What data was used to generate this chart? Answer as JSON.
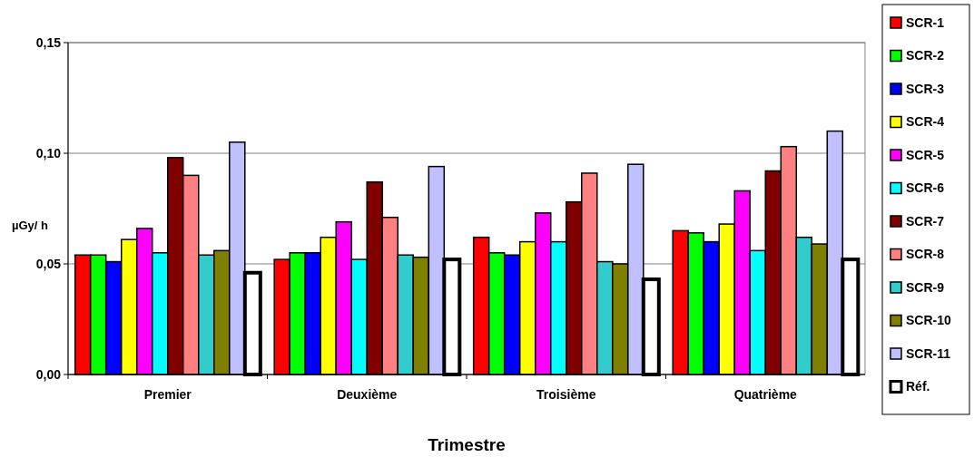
{
  "chart_data": {
    "type": "bar",
    "xlabel": "Trimestre",
    "ylabel": "µGy/ h",
    "categories": [
      "Premier",
      "Deuxième",
      "Troisième",
      "Quatrième"
    ],
    "series": [
      {
        "name": "SCR-1",
        "color": "#ff0000",
        "values": [
          0.054,
          0.052,
          0.062,
          0.065
        ]
      },
      {
        "name": "SCR-2",
        "color": "#00ff00",
        "values": [
          0.054,
          0.055,
          0.055,
          0.064
        ]
      },
      {
        "name": "SCR-3",
        "color": "#0000ff",
        "values": [
          0.051,
          0.055,
          0.054,
          0.06
        ]
      },
      {
        "name": "SCR-4",
        "color": "#ffff00",
        "values": [
          0.061,
          0.062,
          0.06,
          0.068
        ]
      },
      {
        "name": "SCR-5",
        "color": "#ff00ff",
        "values": [
          0.066,
          0.069,
          0.073,
          0.083
        ]
      },
      {
        "name": "SCR-6",
        "color": "#00ffff",
        "values": [
          0.055,
          0.052,
          0.06,
          0.056
        ]
      },
      {
        "name": "SCR-7",
        "color": "#800000",
        "values": [
          0.098,
          0.087,
          0.078,
          0.092
        ]
      },
      {
        "name": "SCR-8",
        "color": "#ff8080",
        "values": [
          0.09,
          0.071,
          0.091,
          0.103
        ]
      },
      {
        "name": "SCR-9",
        "color": "#33cccc",
        "values": [
          0.054,
          0.054,
          0.051,
          0.062
        ]
      },
      {
        "name": "SCR-10",
        "color": "#808000",
        "values": [
          0.056,
          0.053,
          0.05,
          0.059
        ]
      },
      {
        "name": "SCR-11",
        "color": "#c0c0ff",
        "values": [
          0.105,
          0.094,
          0.095,
          0.11
        ]
      },
      {
        "name": "Réf.",
        "color": "#ffffff",
        "values": [
          0.046,
          0.052,
          0.043,
          0.052
        ]
      }
    ],
    "ylim": [
      0,
      0.15
    ],
    "yticks": [
      {
        "value": 0,
        "label": "0,00"
      },
      {
        "value": 0.05,
        "label": "0,05"
      },
      {
        "value": 0.1,
        "label": "0,10"
      },
      {
        "value": 0.15,
        "label": "0,15"
      }
    ],
    "grid": "y",
    "legend": "right"
  }
}
